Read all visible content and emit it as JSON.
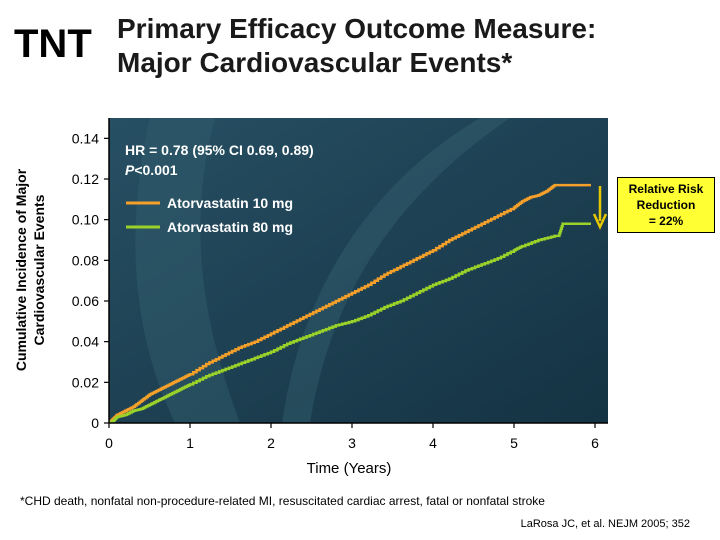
{
  "header": {
    "badge": "TNT",
    "title_line1": "Primary Efficacy Outcome Measure:",
    "title_line2": "Major Cardiovascular Events*"
  },
  "callout": {
    "line1": "Relative Risk",
    "line2": "Reduction",
    "line3": "= 22%",
    "arrow_color": "#e6c800",
    "box_color": "#ffff33"
  },
  "footer": {
    "footnote": "*CHD death, nonfatal non-procedure-related MI, resuscitated cardiac arrest, fatal or nonfatal stroke",
    "citation": "LaRosa JC, et al. NEJM 2005; 352"
  },
  "chart_data": {
    "type": "line",
    "xlabel": "Time (Years)",
    "ylabel_line1": "Cumulative Incidence of Major",
    "ylabel_line2": "Cardiovascular Events",
    "xlim": [
      0,
      6
    ],
    "ylim": [
      0,
      0.15
    ],
    "x_ticks": [
      "0",
      "1",
      "2",
      "3",
      "4",
      "5",
      "6"
    ],
    "y_ticks": [
      "0",
      "0.02",
      "0.04",
      "0.06",
      "0.08",
      "0.10",
      "0.12",
      "0.14"
    ],
    "y_tick_values": [
      0,
      0.02,
      0.04,
      0.06,
      0.08,
      0.1,
      0.12,
      0.14
    ],
    "annotation_hr": "HR = 0.78 (95% CI 0.69, 0.89)",
    "annotation_p_italic": "P",
    "annotation_p_rest": "<0.001",
    "background_color": "#1f4457",
    "legend_placement": "top-left",
    "series": [
      {
        "name": "Atorvastatin 10 mg",
        "color": "#f5a02a",
        "x": [
          0,
          0.05,
          0.1,
          0.2,
          0.3,
          0.4,
          0.5,
          0.6,
          0.7,
          0.8,
          0.9,
          1.0,
          1.2,
          1.4,
          1.6,
          1.8,
          2.0,
          2.2,
          2.4,
          2.6,
          2.8,
          3.0,
          3.2,
          3.4,
          3.6,
          3.8,
          4.0,
          4.2,
          4.4,
          4.6,
          4.8,
          5.0,
          5.1,
          5.2,
          5.3,
          5.4,
          5.5,
          5.8,
          5.95
        ],
        "y": [
          0,
          0.002,
          0.004,
          0.006,
          0.008,
          0.011,
          0.014,
          0.016,
          0.018,
          0.02,
          0.022,
          0.024,
          0.029,
          0.033,
          0.037,
          0.04,
          0.044,
          0.048,
          0.052,
          0.056,
          0.06,
          0.064,
          0.068,
          0.073,
          0.077,
          0.081,
          0.085,
          0.09,
          0.094,
          0.098,
          0.102,
          0.106,
          0.109,
          0.111,
          0.112,
          0.114,
          0.117,
          0.117,
          0.117
        ]
      },
      {
        "name": "Atorvastatin 80 mg",
        "color": "#9bd22a",
        "x": [
          0,
          0.05,
          0.1,
          0.2,
          0.3,
          0.4,
          0.5,
          0.6,
          0.7,
          0.8,
          0.9,
          1.0,
          1.2,
          1.4,
          1.6,
          1.8,
          2.0,
          2.2,
          2.4,
          2.6,
          2.8,
          3.0,
          3.2,
          3.4,
          3.6,
          3.8,
          4.0,
          4.2,
          4.4,
          4.6,
          4.8,
          5.0,
          5.1,
          5.3,
          5.5,
          5.55,
          5.6,
          5.8,
          5.95
        ],
        "y": [
          0,
          0.001,
          0.003,
          0.004,
          0.006,
          0.007,
          0.009,
          0.011,
          0.013,
          0.015,
          0.017,
          0.019,
          0.023,
          0.026,
          0.029,
          0.032,
          0.035,
          0.039,
          0.042,
          0.045,
          0.048,
          0.05,
          0.053,
          0.057,
          0.06,
          0.064,
          0.068,
          0.071,
          0.075,
          0.078,
          0.081,
          0.085,
          0.087,
          0.09,
          0.092,
          0.092,
          0.098,
          0.098,
          0.098
        ]
      }
    ]
  }
}
